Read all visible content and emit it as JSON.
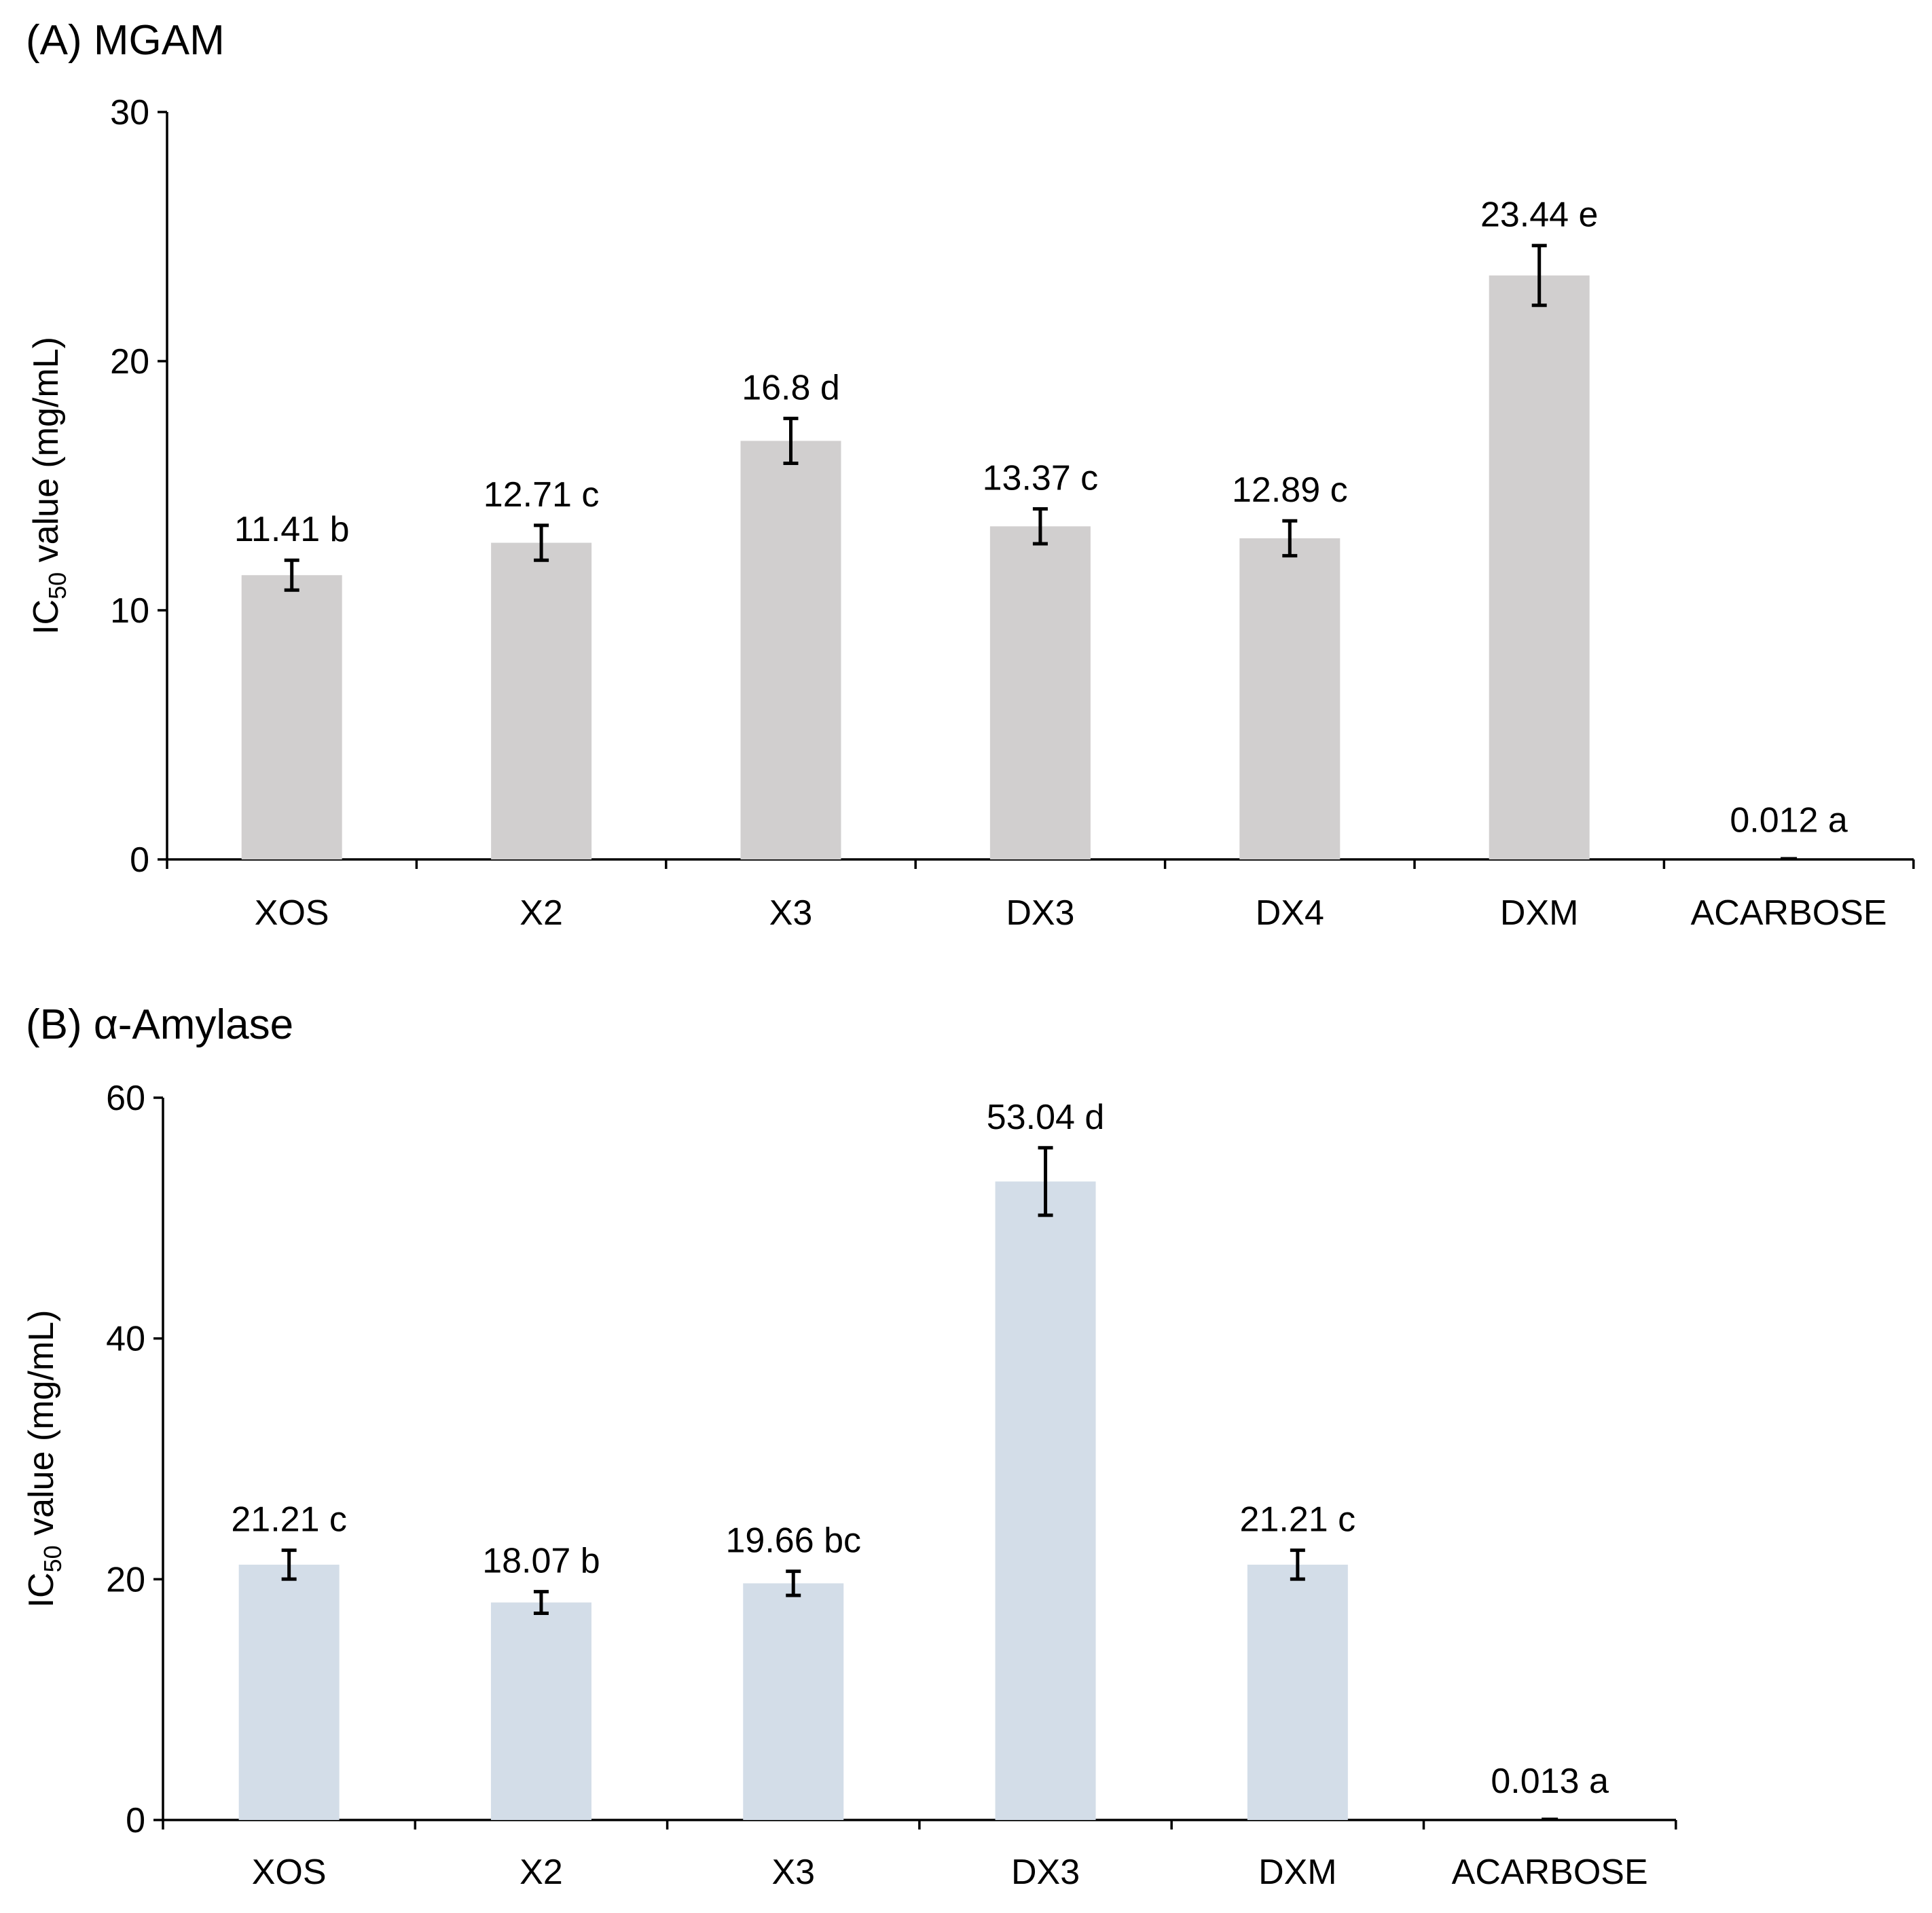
{
  "chart_data": [
    {
      "type": "bar",
      "title": "(A) MGAM",
      "ylabel": "IC",
      "ylabel_sub": "50",
      "ylabel_rest": " value (mg/mL)",
      "ylim": [
        0,
        30
      ],
      "yticks": [
        0,
        10,
        20,
        30
      ],
      "bar_color": "#d1cfcf",
      "categories": [
        "XOS",
        "X2",
        "X3",
        "DX3",
        "DX4",
        "DXM",
        "ACARBOSE"
      ],
      "values": [
        11.41,
        12.71,
        16.8,
        13.37,
        12.89,
        23.44,
        0.012
      ],
      "errors": [
        0.6,
        0.7,
        0.9,
        0.7,
        0.7,
        1.2,
        0
      ],
      "labels": [
        "11.41 b",
        "12.71 c",
        "16.8 d",
        "13.37 c",
        "12.89 c",
        "23.44 e",
        "0.012 a"
      ]
    },
    {
      "type": "bar",
      "title": "(B) α-Amylase",
      "ylabel": "IC",
      "ylabel_sub": "50",
      "ylabel_rest": " value (mg/mL)",
      "ylim": [
        0,
        60
      ],
      "yticks": [
        0,
        20,
        40,
        60
      ],
      "bar_color": "#d3dde8",
      "categories": [
        "XOS",
        "X2",
        "X3",
        "DX3",
        "DXM",
        "ACARBOSE"
      ],
      "values": [
        21.21,
        18.07,
        19.66,
        53.04,
        21.21,
        0.013
      ],
      "errors": [
        1.2,
        0.9,
        1.0,
        2.8,
        1.2,
        0
      ],
      "labels": [
        "21.21 c",
        "18.07 b",
        "19.66 bc",
        "53.04 d",
        "21.21 c",
        "0.013 a"
      ]
    }
  ]
}
